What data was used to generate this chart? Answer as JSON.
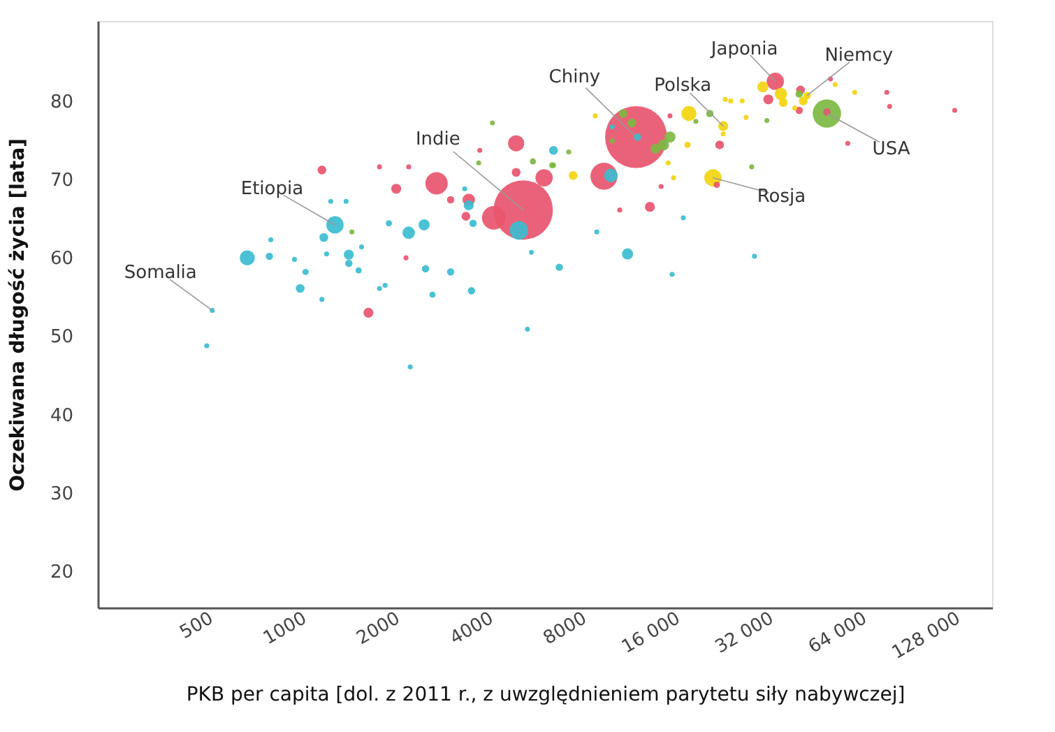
{
  "chart_data": {
    "type": "bubble",
    "xlabel": "PKB per capita [dol. z 2011 r., z uwzględnieniem parytetu siły nabywczej]",
    "ylabel": "Oczekiwana długość życia [lata]",
    "log": "x",
    "grid": false,
    "legend": false,
    "xlim": [
      216,
      165000
    ],
    "ylim": [
      15.4,
      90.2
    ],
    "xticks": [
      500,
      1000,
      2000,
      4000,
      8000,
      {
        "value": 16000,
        "label": "16 000"
      },
      {
        "value": 32000,
        "label": "32 000"
      },
      {
        "value": 64000,
        "label": "64 000"
      },
      {
        "value": 128000,
        "label": "128 000"
      }
    ],
    "yticks": [
      20,
      30,
      40,
      50,
      60,
      70,
      80
    ],
    "series": [
      {
        "color": "#e8556e",
        "x": [
          1140,
          1610,
          1748,
          2171,
          1979,
          2670,
          2964,
          3390,
          3320,
          2128,
          4820,
          3680,
          4820,
          5930,
          4080,
          5080,
          9250,
          13010,
          21830,
          33000,
          31340,
          39800,
          39400,
          48400,
          56500,
          49700,
          75500,
          77100,
          125000,
          14140,
          10400,
          21370,
          15100,
          11740
        ],
        "values": [
          71.2,
          53.0,
          71.6,
          71.6,
          68.8,
          69.5,
          67.4,
          67.4,
          65.3,
          60.0,
          74.6,
          73.7,
          70.9,
          70.2,
          65.1,
          66.1,
          70.4,
          66.5,
          74.4,
          82.5,
          80.2,
          81.4,
          78.8,
          78.6,
          74.6,
          82.8,
          81.1,
          79.3,
          78.8,
          69.1,
          66.1,
          69.3,
          78.1,
          75.4
        ],
        "sizes": [
          0.02,
          0.026,
          0.0064,
          0.0064,
          0.026,
          0.13,
          0.014,
          0.04,
          0.02,
          0.0064,
          0.068,
          0.0064,
          0.02,
          0.078,
          0.144,
          0.92,
          0.19,
          0.026,
          0.02,
          0.078,
          0.026,
          0.02,
          0.014,
          0.014,
          0.0064,
          0.0064,
          0.0064,
          0.0064,
          0.0064,
          0.0064,
          0.0064,
          0.01,
          0.0064,
          1
        ]
      },
      {
        "color": "#3bbcd0",
        "x": [
          505,
          485,
          655,
          772,
          780,
          930,
          1010,
          970,
          1140,
          1156,
          1180,
          1256,
          1217,
          1364,
          1392,
          1392,
          1497,
          1530,
          1748,
          1822,
          1874,
          2171,
          2434,
          2460,
          2590,
          2964,
          3460,
          2196,
          3390,
          3500,
          3290,
          4920,
          5400,
          5240,
          6640,
          6360,
          9740,
          11860,
          9840,
          11020,
          8770,
          15340,
          16670,
          28270
        ],
        "values": [
          53.3,
          48.8,
          60.0,
          60.2,
          62.3,
          59.8,
          58.2,
          56.1,
          54.7,
          62.6,
          60.5,
          64.2,
          67.2,
          67.2,
          60.4,
          59.3,
          58.4,
          61.4,
          56.1,
          56.5,
          64.4,
          63.2,
          64.2,
          58.6,
          55.3,
          58.2,
          55.8,
          46.1,
          66.7,
          64.4,
          68.8,
          63.5,
          60.7,
          50.9,
          58.8,
          73.7,
          70.5,
          75.4,
          76.7,
          60.5,
          63.3,
          57.9,
          65.1,
          60.2
        ],
        "sizes": [
          0.0064,
          0.0064,
          0.058,
          0.014,
          0.0064,
          0.0064,
          0.01,
          0.02,
          0.0064,
          0.02,
          0.0064,
          0.078,
          0.0064,
          0.0064,
          0.026,
          0.014,
          0.01,
          0.0064,
          0.0064,
          0.0064,
          0.01,
          0.04,
          0.032,
          0.014,
          0.01,
          0.014,
          0.014,
          0.0064,
          0.026,
          0.014,
          0.0064,
          0.09,
          0.0064,
          0.0064,
          0.014,
          0.02,
          0.048,
          0.014,
          0.0064,
          0.032,
          0.0064,
          0.0064,
          0.0064,
          0.0064
        ]
      },
      {
        "color": "#7cb843",
        "x": [
          48400,
          20300,
          10660,
          11380,
          15100,
          14400,
          13560,
          9840,
          6360,
          7120,
          18300,
          39400,
          31000,
          27700,
          4040,
          3650,
          5460,
          6300,
          1424
        ],
        "values": [
          78.4,
          78.4,
          78.4,
          77.2,
          75.4,
          74.4,
          73.9,
          74.9,
          71.8,
          73.5,
          77.4,
          80.9,
          77.5,
          71.6,
          77.2,
          72.1,
          72.3,
          71.8,
          63.3
        ],
        "sizes": [
          0.21,
          0.014,
          0.02,
          0.02,
          0.032,
          0.032,
          0.026,
          0.0064,
          0.0064,
          0.0064,
          0.0064,
          0.014,
          0.0064,
          0.0064,
          0.0064,
          0.0064,
          0.01,
          0.01,
          0.0064
        ]
      },
      {
        "color": "#f2d410",
        "x": [
          17380,
          20770,
          22420,
          30080,
          34400,
          35000,
          40600,
          41800,
          22750,
          23700,
          26560,
          17200,
          15500,
          7360,
          8670,
          59500,
          51500,
          25800,
          14900,
          22420,
          38130
        ],
        "values": [
          78.4,
          70.2,
          76.8,
          81.8,
          80.9,
          79.8,
          80.0,
          80.7,
          80.2,
          80.0,
          77.9,
          74.4,
          70.2,
          70.5,
          78.1,
          81.1,
          82.1,
          80.0,
          72.1,
          75.8,
          79.1
        ],
        "sizes": [
          0.058,
          0.078,
          0.026,
          0.032,
          0.04,
          0.02,
          0.02,
          0.014,
          0.0064,
          0.0064,
          0.0064,
          0.01,
          0.0064,
          0.02,
          0.0064,
          0.0064,
          0.0064,
          0.0064,
          0.0064,
          0.0064,
          0.0064
        ]
      }
    ],
    "annotations": [
      {
        "text": "Somalia",
        "x": 505,
        "y": 53.3
      },
      {
        "text": "Etiopia",
        "x": 1256,
        "y": 64.2
      },
      {
        "text": "Indie",
        "x": 5080,
        "y": 66.1
      },
      {
        "text": "Chiny",
        "x": 11740,
        "y": 75.4
      },
      {
        "text": "Polska",
        "x": 22420,
        "y": 76.8
      },
      {
        "text": "Japonia",
        "x": 33000,
        "y": 82.5
      },
      {
        "text": "Niemcy",
        "x": 41800,
        "y": 80.7
      },
      {
        "text": "USA",
        "x": 48400,
        "y": 78.4
      },
      {
        "text": "Rosja",
        "x": 20770,
        "y": 70.2
      }
    ]
  }
}
